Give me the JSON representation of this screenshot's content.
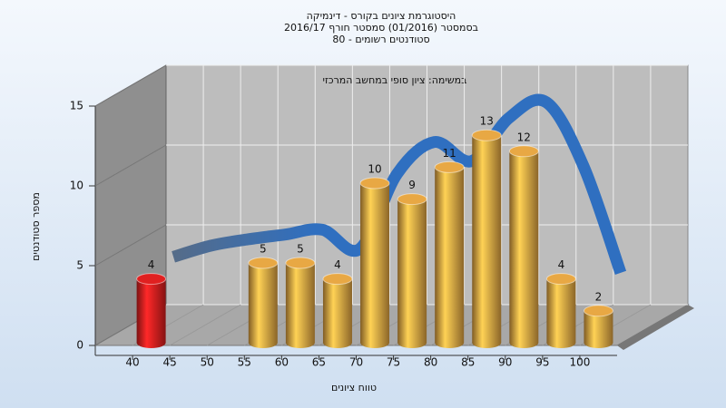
{
  "chart_data": {
    "type": "bar",
    "title_lines": [
      "היסטוגרמת ציונים בקורס - דינמיקה",
      "בסמסטר  (01/2016)  סמסטר חורף 2016/17",
      "סטודנטים רשומים - 80"
    ],
    "annotation": "במשימה: ציון סופי במחשב המרכזי",
    "x_label": "טווח ציונים",
    "y_label": "מספר סטודנטים",
    "x": [
      40,
      45,
      50,
      55,
      60,
      65,
      70,
      75,
      80,
      85,
      90,
      95,
      100
    ],
    "values": [
      4,
      null,
      null,
      5,
      5,
      4,
      10,
      9,
      11,
      13,
      12,
      4,
      2
    ],
    "color": "#e8a844",
    "highlight_color": "#e02020",
    "highlight_index": 0,
    "curve": {
      "values": [
        4.3,
        5,
        5.4,
        5.7,
        6,
        4.8,
        9.5,
        11.5,
        10.3,
        13,
        14,
        10,
        3.3
      ],
      "color": "#2f6fc0",
      "start_color": "#6a6a6a"
    },
    "xlim": [
      35,
      105
    ],
    "xticks": [
      40,
      45,
      50,
      55,
      60,
      65,
      70,
      75,
      80,
      85,
      90,
      95,
      100
    ],
    "ylim": [
      0,
      15
    ],
    "yticks": [
      0,
      5,
      10,
      15
    ],
    "grid": true
  }
}
